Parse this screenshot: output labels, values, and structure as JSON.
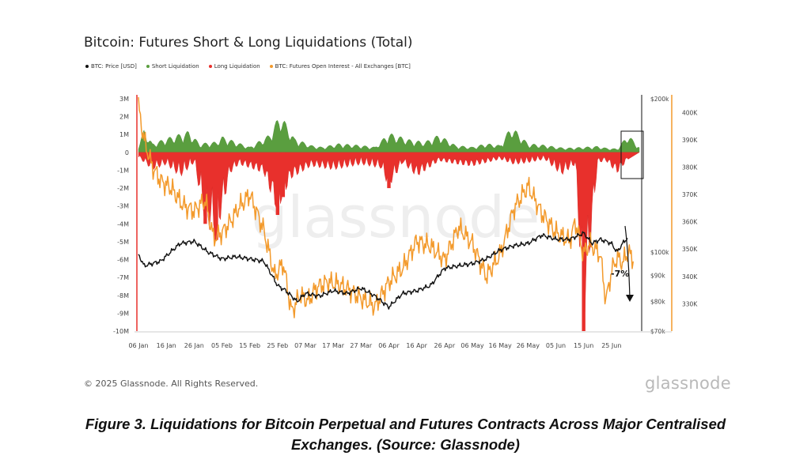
{
  "chart_data": {
    "type": "area",
    "title": "Bitcoin: Futures Short & Long Liquidations (Total)",
    "legend": [
      {
        "name": "BTC: Price [USD]",
        "color": "#111111"
      },
      {
        "name": "Short Liquidation",
        "color": "#5a9e3f"
      },
      {
        "name": "Long Liquidation",
        "color": "#e8302c"
      },
      {
        "name": "BTC: Futures Open Interest - All Exchanges [BTC]",
        "color": "#f39a2c"
      }
    ],
    "x_ticks": [
      "06 Jan",
      "16 Jan",
      "26 Jan",
      "05 Feb",
      "15 Feb",
      "25 Feb",
      "07 Mar",
      "17 Mar",
      "27 Mar",
      "06 Apr",
      "16 Apr",
      "26 Apr",
      "06 May",
      "16 May",
      "26 May",
      "05 Jun",
      "15 Jun",
      "25 Jun"
    ],
    "left_axis": {
      "ticks": [
        "3M",
        "2M",
        "1M",
        "0",
        "-1M",
        "-2M",
        "-3M",
        "-4M",
        "-5M",
        "-6M",
        "-7M",
        "-8M",
        "-9M",
        "-10M"
      ],
      "min": -10000000,
      "max": 3000000
    },
    "price_axis": {
      "ticks": [
        "$200k",
        "$100k",
        "$90k",
        "$80k",
        "$70k"
      ],
      "scale": "log",
      "min": 70000,
      "max": 200000
    },
    "oi_axis": {
      "ticks": [
        "400K",
        "390K",
        "380K",
        "370K",
        "360K",
        "350K",
        "340K",
        "330K"
      ],
      "min": 320000,
      "max": 405000
    },
    "series": [
      {
        "name": "Short Liquidation",
        "unit": "USD",
        "day_offset_from_06_Jan": [
          0,
          2,
          5,
          10,
          18,
          22,
          28,
          30,
          40,
          47,
          51,
          56,
          62,
          66,
          72,
          80,
          85,
          90,
          98,
          103,
          108,
          114,
          120,
          125,
          130,
          134,
          140,
          147,
          150,
          154,
          160,
          165,
          168,
          172,
          176,
          180
        ],
        "values": [
          400000,
          1300000,
          500000,
          800000,
          1200000,
          500000,
          600000,
          900000,
          300000,
          1000000,
          2200000,
          800000,
          400000,
          300000,
          500000,
          400000,
          300000,
          1100000,
          700000,
          600000,
          1000000,
          400000,
          300000,
          500000,
          400000,
          1500000,
          500000,
          400000,
          300000,
          250000,
          300000,
          350000,
          250000,
          200000,
          1000000,
          300000
        ]
      },
      {
        "name": "Long Liquidation",
        "unit": "USD",
        "day_offset_from_06_Jan": [
          0,
          5,
          10,
          15,
          20,
          24,
          28,
          33,
          36,
          40,
          45,
          50,
          52,
          55,
          62,
          70,
          80,
          87,
          90,
          95,
          100,
          108,
          115,
          120,
          125,
          130,
          135,
          140,
          146,
          152,
          157,
          160,
          165,
          168,
          172,
          176
        ],
        "values": [
          -300000,
          -1000000,
          -700000,
          -1400000,
          -600000,
          -4000000,
          -4900000,
          -1200000,
          -700000,
          -900000,
          -1200000,
          -3500000,
          -2500000,
          -1500000,
          -800000,
          -1000000,
          -700000,
          -900000,
          -2000000,
          -600000,
          -1400000,
          -500000,
          -700000,
          -800000,
          -600000,
          -400000,
          -700000,
          -600000,
          -400000,
          -1300000,
          -700000,
          -10000000,
          -600000,
          -500000,
          -1200000,
          -400000
        ]
      },
      {
        "name": "BTC: Price [USD]",
        "unit": "USD",
        "day_offset_from_06_Jan": [
          0,
          2,
          8,
          15,
          20,
          25,
          30,
          35,
          40,
          45,
          50,
          53,
          57,
          60,
          65,
          70,
          75,
          80,
          85,
          90,
          95,
          100,
          105,
          110,
          115,
          120,
          125,
          130,
          135,
          140,
          145,
          150,
          155,
          160,
          163,
          166,
          170,
          172,
          174,
          176
        ],
        "values": [
          99000,
          94000,
          96000,
          104000,
          105000,
          100000,
          97000,
          98000,
          97000,
          96000,
          86000,
          84000,
          80000,
          83000,
          82000,
          84000,
          83000,
          85000,
          82000,
          78000,
          83000,
          84000,
          86000,
          93000,
          94000,
          95000,
          97000,
          101000,
          103000,
          104000,
          108000,
          106000,
          106000,
          109000,
          104000,
          106000,
          104000,
          100000,
          104000,
          107000
        ]
      },
      {
        "name": "BTC: Futures Open Interest - All Exchanges [BTC]",
        "unit": "BTC",
        "day_offset_from_06_Jan": [
          0,
          2,
          5,
          8,
          12,
          16,
          20,
          24,
          27,
          30,
          33,
          36,
          40,
          45,
          49,
          52,
          55,
          58,
          61,
          64,
          68,
          72,
          76,
          80,
          85,
          90,
          95,
          100,
          105,
          110,
          115,
          120,
          125,
          130,
          135,
          140,
          145,
          150,
          155,
          157,
          160,
          162,
          164,
          166,
          168,
          170,
          172,
          174,
          176,
          178
        ],
        "values": [
          402000,
          390000,
          380000,
          375000,
          372000,
          366000,
          364000,
          368000,
          354000,
          356000,
          360000,
          365000,
          370000,
          357000,
          340000,
          345000,
          327000,
          333000,
          331000,
          336000,
          338000,
          337000,
          335000,
          332000,
          329000,
          338000,
          343000,
          353000,
          351000,
          346000,
          358000,
          352000,
          340000,
          348000,
          365000,
          373000,
          363000,
          356000,
          353000,
          360000,
          348000,
          352000,
          350000,
          348000,
          331000,
          342000,
          347000,
          345000,
          349000,
          346000
        ]
      }
    ],
    "annotation": "-7%"
  },
  "copyright": "© 2025 Glassnode. All Rights Reserved.",
  "brand": "glassnode",
  "watermark": "glassnode",
  "caption_line1": "Figure 3.  Liquidations for Bitcoin Perpetual and Futures Contracts Across Major Centralised",
  "caption_line2": "Exchanges. (Source: Glassnode)"
}
